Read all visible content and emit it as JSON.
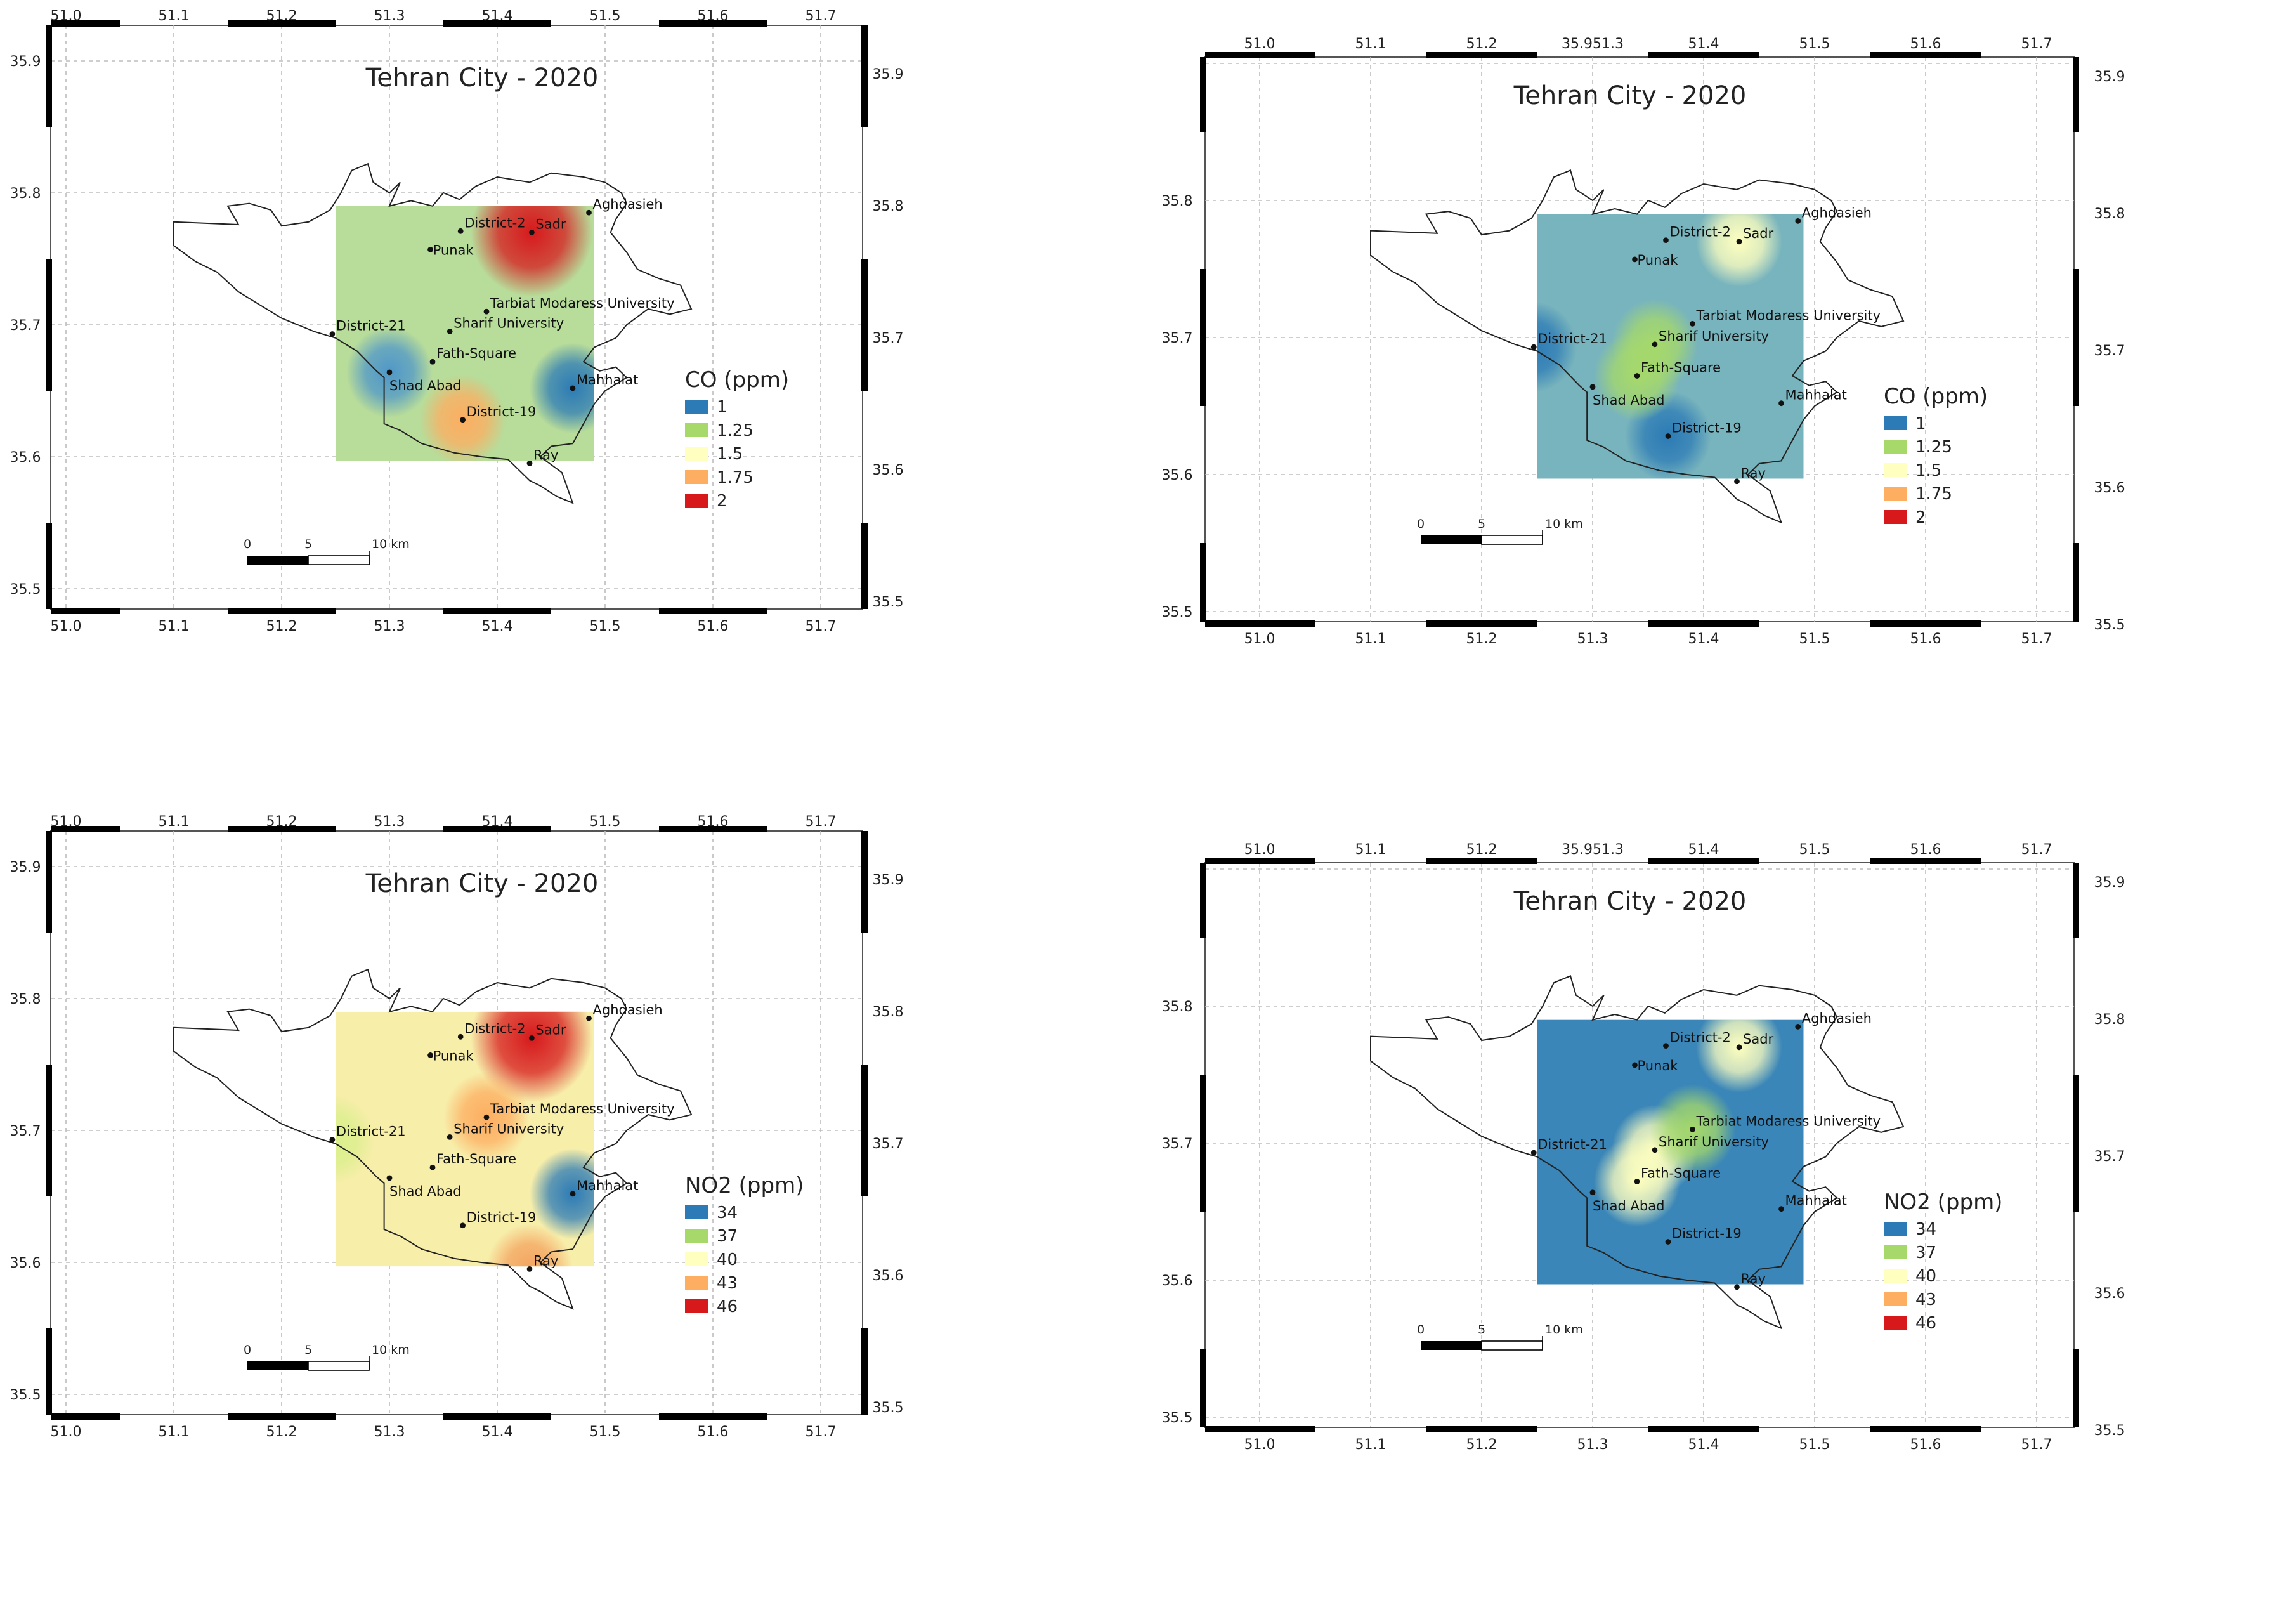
{
  "panels": [
    {
      "title": "Tehran City - 2020",
      "legend_title": "CO (ppm)",
      "legend": [
        {
          "label": "1",
          "color": "#2c7bb6"
        },
        {
          "label": "1.25",
          "color": "#a6d96a"
        },
        {
          "label": "1.5",
          "color": "#ffffbf"
        },
        {
          "label": "1.75",
          "color": "#fdae61"
        },
        {
          "label": "2",
          "color": "#d7191c"
        }
      ],
      "x_ticks_top": [
        "51.0",
        "51.1",
        "51.2",
        "51.3",
        "51.4",
        "51.5",
        "51.6",
        "51.7"
      ],
      "x_ticks_bottom": [
        "51.0",
        "51.1",
        "51.2",
        "51.3",
        "51.4",
        "51.5",
        "51.6",
        "51.7"
      ],
      "y_ticks_left": [
        "35.9",
        "35.8",
        "35.7",
        "35.6",
        "35.5"
      ],
      "y_ticks_right": [
        "35.9",
        "35.8",
        "35.7",
        "35.6",
        "35.5"
      ],
      "scale_labels": [
        "0",
        "5",
        "10 km"
      ],
      "surface_base": "#b8dc9a",
      "hotspots": [
        {
          "station": "Sadr",
          "color": "#d7191c",
          "value": 2.0
        },
        {
          "station": "District-19",
          "color": "#fdae61",
          "value": 1.75
        },
        {
          "station": "Mahhalat",
          "color": "#2c7bb6",
          "value": 1.0
        },
        {
          "station": "Shad Abad",
          "color": "#4f97c9",
          "value": 1.1
        }
      ]
    },
    {
      "title": "Tehran City - 2020",
      "legend_title": "CO (ppm)",
      "legend": [
        {
          "label": "1",
          "color": "#2c7bb6"
        },
        {
          "label": "1.25",
          "color": "#a6d96a"
        },
        {
          "label": "1.5",
          "color": "#ffffbf"
        },
        {
          "label": "1.75",
          "color": "#fdae61"
        },
        {
          "label": "2",
          "color": "#d7191c"
        }
      ],
      "x_ticks_top": [
        "51.0",
        "51.1",
        "51.2",
        "35.951.3",
        "51.4",
        "51.5",
        "51.6",
        "51.7"
      ],
      "x_ticks_bottom": [
        "51.0",
        "51.1",
        "51.2",
        "51.3",
        "51.4",
        "51.5",
        "51.6",
        "51.7"
      ],
      "y_ticks_left": [
        "35.8",
        "35.7",
        "35.6",
        "35.5"
      ],
      "y_ticks_right": [
        "35.9",
        "35.8",
        "35.7",
        "35.6",
        "35.5"
      ],
      "scale_labels": [
        "0",
        "5",
        "10 km"
      ],
      "surface_base": "#78b4bd",
      "hotspots": [
        {
          "station": "Sadr",
          "color": "#ffffbf",
          "value": 1.5
        },
        {
          "station": "District-21",
          "color": "#2c7bb6",
          "value": 1.0
        },
        {
          "station": "District-19",
          "color": "#2c7bb6",
          "value": 1.0
        },
        {
          "station": "Sharif University",
          "color": "#a6d96a",
          "value": 1.25
        },
        {
          "station": "Fath-Square",
          "color": "#a6d96a",
          "value": 1.25
        }
      ]
    },
    {
      "title": "Tehran City - 2020",
      "legend_title": "NO2 (ppm)",
      "legend": [
        {
          "label": "34",
          "color": "#2c7bb6"
        },
        {
          "label": "37",
          "color": "#a6d96a"
        },
        {
          "label": "40",
          "color": "#ffffbf"
        },
        {
          "label": "43",
          "color": "#fdae61"
        },
        {
          "label": "46",
          "color": "#d7191c"
        }
      ],
      "x_ticks_top": [
        "51.0",
        "51.1",
        "51.2",
        "51.3",
        "51.4",
        "51.5",
        "51.6",
        "51.7"
      ],
      "x_ticks_bottom": [
        "51.0",
        "51.1",
        "51.2",
        "51.3",
        "51.4",
        "51.5",
        "51.6",
        "51.7"
      ],
      "y_ticks_left": [
        "35.9",
        "35.8",
        "35.7",
        "35.6",
        "35.5"
      ],
      "y_ticks_right": [
        "35.9",
        "35.8",
        "35.7",
        "35.6",
        "35.5"
      ],
      "scale_labels": [
        "0",
        "5",
        "10 km"
      ],
      "surface_base": "#f7eeaa",
      "hotspots": [
        {
          "station": "Sadr",
          "color": "#d7191c",
          "value": 46
        },
        {
          "station": "Tarbiat Modaress University",
          "color": "#fdae61",
          "value": 43
        },
        {
          "station": "Ray",
          "color": "#f4a460",
          "value": 42
        },
        {
          "station": "Mahhalat",
          "color": "#2c7bb6",
          "value": 34
        },
        {
          "station": "District-21",
          "color": "#d9ef8b",
          "value": 38
        }
      ]
    },
    {
      "title": "Tehran City - 2020",
      "legend_title": "NO2 (ppm)",
      "legend": [
        {
          "label": "34",
          "color": "#2c7bb6"
        },
        {
          "label": "37",
          "color": "#a6d96a"
        },
        {
          "label": "40",
          "color": "#ffffbf"
        },
        {
          "label": "43",
          "color": "#fdae61"
        },
        {
          "label": "46",
          "color": "#d7191c"
        }
      ],
      "x_ticks_top": [
        "51.0",
        "51.1",
        "51.2",
        "35.951.3",
        "51.4",
        "51.5",
        "51.6",
        "51.7"
      ],
      "x_ticks_bottom": [
        "51.0",
        "51.1",
        "51.2",
        "51.3",
        "51.4",
        "51.5",
        "51.6",
        "51.7"
      ],
      "y_ticks_left": [
        "35.8",
        "35.7",
        "35.6",
        "35.5"
      ],
      "y_ticks_right": [
        "35.9",
        "35.8",
        "35.7",
        "35.6",
        "35.5"
      ],
      "scale_labels": [
        "0",
        "5",
        "10 km"
      ],
      "surface_base": "#3a86b8",
      "hotspots": [
        {
          "station": "Sadr",
          "color": "#ffffbf",
          "value": 40
        },
        {
          "station": "Sharif University",
          "color": "#ffffbf",
          "value": 40
        },
        {
          "station": "Fath-Square",
          "color": "#ffffbf",
          "value": 40
        },
        {
          "station": "Tarbiat Modaress University",
          "color": "#a6d96a",
          "value": 37
        }
      ]
    }
  ],
  "stations": [
    {
      "name": "Aghdasieh",
      "lon": 51.485,
      "lat": 35.785
    },
    {
      "name": "District-2",
      "lon": 51.366,
      "lat": 35.771
    },
    {
      "name": "Sadr",
      "lon": 51.432,
      "lat": 35.77
    },
    {
      "name": "Punak",
      "lon": 51.338,
      "lat": 35.757
    },
    {
      "name": "Tarbiat Modaress University",
      "lon": 51.39,
      "lat": 35.71
    },
    {
      "name": "District-21",
      "lon": 51.247,
      "lat": 35.693
    },
    {
      "name": "Sharif University",
      "lon": 51.356,
      "lat": 35.695
    },
    {
      "name": "Fath-Square",
      "lon": 51.34,
      "lat": 35.672
    },
    {
      "name": "Shad Abad",
      "lon": 51.3,
      "lat": 35.664
    },
    {
      "name": "Mahhalat",
      "lon": 51.47,
      "lat": 35.652
    },
    {
      "name": "District-19",
      "lon": 51.368,
      "lat": 35.628
    },
    {
      "name": "Ray",
      "lon": 51.43,
      "lat": 35.595
    }
  ]
}
